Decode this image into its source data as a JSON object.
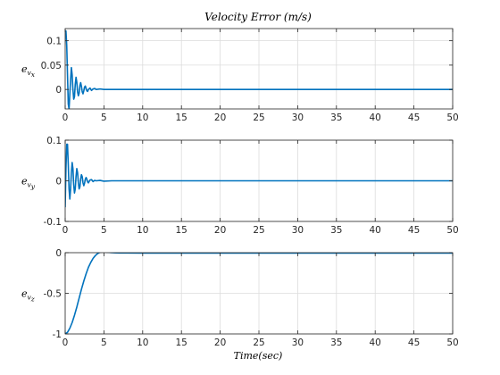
{
  "figure": {
    "title": "Velocity Error (m/s)",
    "xlabel": "Time(sec)"
  },
  "chart_data": [
    {
      "type": "line",
      "ylabel_main": "e",
      "ylabel_sub": "v",
      "ylabel_subsub": "x",
      "xlim": [
        0,
        50
      ],
      "ylim": [
        -0.04,
        0.125
      ],
      "xticks": [
        0,
        5,
        10,
        15,
        20,
        25,
        30,
        35,
        40,
        45,
        50
      ],
      "yticks": [
        0,
        0.05,
        0.1
      ],
      "ytick_labels": [
        "0",
        "0.05",
        "0.1"
      ],
      "grid": true,
      "series": [
        {
          "color": "#0072bd",
          "x": [
            0,
            0.1,
            0.2,
            0.3,
            0.4,
            0.5,
            0.6,
            0.7,
            0.8,
            0.9,
            1.0,
            1.1,
            1.2,
            1.3,
            1.4,
            1.5,
            1.6,
            1.7,
            1.8,
            1.9,
            2.0,
            2.1,
            2.2,
            2.3,
            2.4,
            2.5,
            2.6,
            2.7,
            2.8,
            2.9,
            3.0,
            3.2,
            3.4,
            3.6,
            3.8,
            4.0,
            4.5,
            5,
            6,
            8,
            10,
            15,
            20,
            25,
            30,
            35,
            40,
            45,
            50
          ],
          "y": [
            0.12,
            0.12,
            0.09,
            0.03,
            -0.03,
            -0.04,
            -0.01,
            0.02,
            0.045,
            0.03,
            0.0,
            -0.02,
            -0.015,
            0.01,
            0.025,
            0.015,
            -0.005,
            -0.013,
            -0.008,
            0.008,
            0.014,
            0.006,
            -0.005,
            -0.009,
            -0.003,
            0.005,
            0.007,
            0.002,
            -0.003,
            -0.004,
            0.0,
            0.003,
            -0.002,
            0.001,
            0.002,
            0.0,
            0.001,
            0.0,
            0.0,
            0.0,
            0.0,
            0.0,
            0.0,
            0.0,
            0.0,
            0.0,
            0.0,
            0.0,
            0.0
          ]
        }
      ]
    },
    {
      "type": "line",
      "ylabel_main": "e",
      "ylabel_sub": "v",
      "ylabel_subsub": "y",
      "xlim": [
        0,
        50
      ],
      "ylim": [
        -0.1,
        0.1
      ],
      "xticks": [
        0,
        5,
        10,
        15,
        20,
        25,
        30,
        35,
        40,
        45,
        50
      ],
      "yticks": [
        -0.1,
        0,
        0.1
      ],
      "ytick_labels": [
        "-0.1",
        "0",
        "0.1"
      ],
      "grid": true,
      "series": [
        {
          "color": "#0072bd",
          "x": [
            0,
            0.1,
            0.2,
            0.3,
            0.4,
            0.5,
            0.6,
            0.7,
            0.8,
            0.9,
            1.0,
            1.1,
            1.2,
            1.3,
            1.4,
            1.5,
            1.6,
            1.7,
            1.8,
            1.9,
            2.0,
            2.1,
            2.2,
            2.3,
            2.4,
            2.5,
            2.6,
            2.7,
            2.8,
            2.9,
            3.0,
            3.2,
            3.4,
            3.6,
            3.8,
            4.0,
            4.5,
            5,
            6,
            8,
            10,
            15,
            20,
            25,
            30,
            35,
            40,
            45,
            50
          ],
          "y": [
            -0.065,
            0.03,
            0.09,
            0.09,
            0.04,
            -0.02,
            -0.045,
            -0.02,
            0.02,
            0.045,
            0.03,
            -0.01,
            -0.03,
            -0.02,
            0.01,
            0.03,
            0.02,
            -0.005,
            -0.02,
            -0.015,
            0.005,
            0.015,
            0.01,
            -0.005,
            -0.012,
            -0.006,
            0.004,
            0.008,
            0.004,
            -0.003,
            -0.005,
            0.002,
            0.003,
            -0.002,
            0.001,
            0.0,
            0.001,
            -0.001,
            0.0,
            0.0,
            0.0,
            0.0,
            0.0,
            0.0,
            0.0,
            0.0,
            0.0,
            0.0,
            0.0
          ]
        }
      ]
    },
    {
      "type": "line",
      "ylabel_main": "e",
      "ylabel_sub": "v",
      "ylabel_subsub": "z",
      "xlim": [
        0,
        50
      ],
      "ylim": [
        -1,
        0
      ],
      "xticks": [
        0,
        5,
        10,
        15,
        20,
        25,
        30,
        35,
        40,
        45,
        50
      ],
      "yticks": [
        -1,
        -0.5,
        0
      ],
      "ytick_labels": [
        "-1",
        "-0.5",
        "0"
      ],
      "grid": true,
      "series": [
        {
          "color": "#0072bd",
          "x": [
            0,
            0.3,
            0.6,
            0.9,
            1.2,
            1.5,
            1.8,
            2.1,
            2.4,
            2.7,
            3.0,
            3.3,
            3.6,
            3.9,
            4.2,
            4.5,
            4.8,
            5.1,
            5.5,
            6,
            7,
            8,
            10,
            15,
            20,
            25,
            30,
            35,
            40,
            45,
            50
          ],
          "y": [
            -1.0,
            -0.98,
            -0.93,
            -0.86,
            -0.77,
            -0.67,
            -0.56,
            -0.45,
            -0.35,
            -0.26,
            -0.18,
            -0.12,
            -0.07,
            -0.035,
            -0.01,
            0.005,
            0.012,
            0.01,
            0.004,
            0.0,
            -0.003,
            -0.004,
            -0.005,
            -0.005,
            -0.005,
            -0.005,
            -0.005,
            -0.005,
            -0.005,
            -0.005,
            -0.005
          ]
        }
      ]
    }
  ]
}
